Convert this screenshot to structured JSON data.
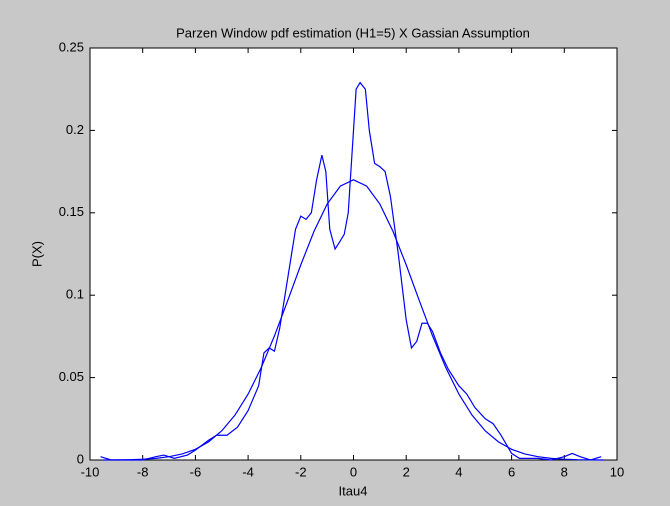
{
  "chart_data": {
    "type": "line",
    "title": "Parzen Window pdf estimation (H1=5) X Gassian Assumption",
    "xlabel": "Itau4",
    "ylabel": "P(X)",
    "xlim": [
      -10,
      10
    ],
    "xticks": [
      -10,
      -8,
      -6,
      -4,
      -2,
      0,
      2,
      4,
      6,
      8,
      10
    ],
    "ylim": [
      0,
      0.25
    ],
    "yticks": [
      0,
      0.05,
      0.1,
      0.15,
      0.2,
      0.25
    ],
    "grid": false,
    "series": [
      {
        "color": "#0000ff",
        "x": [
          -9.6,
          -9.2,
          -8,
          -7.5,
          -7.2,
          -6.8,
          -6.3,
          -6,
          -5.5,
          -5.2,
          -4.8,
          -4.4,
          -4,
          -3.6,
          -3.4,
          -3.2,
          -3,
          -2.8,
          -2.5,
          -2.2,
          -2,
          -1.8,
          -1.6,
          -1.4,
          -1.2,
          -1.05,
          -0.9,
          -0.7,
          -0.5,
          -0.35,
          -0.2,
          0,
          0.1,
          0.25,
          0.45,
          0.6,
          0.8,
          1,
          1.2,
          1.4,
          1.7,
          2,
          2.2,
          2.4,
          2.6,
          2.8,
          3,
          3.3,
          3.6,
          4,
          4.3,
          4.6,
          5,
          5.3,
          5.6,
          6,
          6.3,
          7,
          7.5,
          8,
          8.3,
          8.6,
          9,
          9.4
        ],
        "values": [
          0.002,
          0,
          0,
          0.002,
          0.003,
          0.001,
          0.003,
          0.006,
          0.012,
          0.015,
          0.015,
          0.02,
          0.03,
          0.045,
          0.065,
          0.068,
          0.066,
          0.08,
          0.11,
          0.14,
          0.148,
          0.146,
          0.15,
          0.17,
          0.185,
          0.175,
          0.14,
          0.128,
          0.133,
          0.137,
          0.15,
          0.2,
          0.225,
          0.229,
          0.225,
          0.2,
          0.18,
          0.178,
          0.175,
          0.16,
          0.125,
          0.085,
          0.068,
          0.072,
          0.083,
          0.083,
          0.078,
          0.065,
          0.055,
          0.045,
          0.04,
          0.032,
          0.025,
          0.022,
          0.015,
          0.004,
          0.001,
          0.001,
          0,
          0.002,
          0.004,
          0.002,
          0,
          0.002
        ]
      },
      {
        "color": "#0000ff",
        "x": [
          -9.5,
          -9,
          -8.5,
          -8,
          -7.5,
          -7,
          -6.5,
          -6,
          -5.5,
          -5,
          -4.5,
          -4,
          -3.5,
          -3,
          -2.5,
          -2,
          -1.5,
          -1,
          -0.5,
          0,
          0.5,
          1,
          1.5,
          2,
          2.5,
          3,
          3.5,
          4,
          4.5,
          5,
          5.5,
          6,
          6.5,
          7,
          7.5,
          8,
          8.5,
          9,
          9.5
        ],
        "values": [
          0,
          0.0001,
          0.0002,
          0.0005,
          0.001,
          0.002,
          0.0037,
          0.0065,
          0.011,
          0.0177,
          0.0272,
          0.04,
          0.0561,
          0.0753,
          0.0966,
          0.1184,
          0.1387,
          0.1553,
          0.1662,
          0.17,
          0.1662,
          0.1553,
          0.1387,
          0.1184,
          0.0966,
          0.0753,
          0.0561,
          0.04,
          0.0272,
          0.0177,
          0.011,
          0.0065,
          0.0037,
          0.002,
          0.001,
          0.0005,
          0.0002,
          0.0001,
          0
        ]
      }
    ]
  }
}
